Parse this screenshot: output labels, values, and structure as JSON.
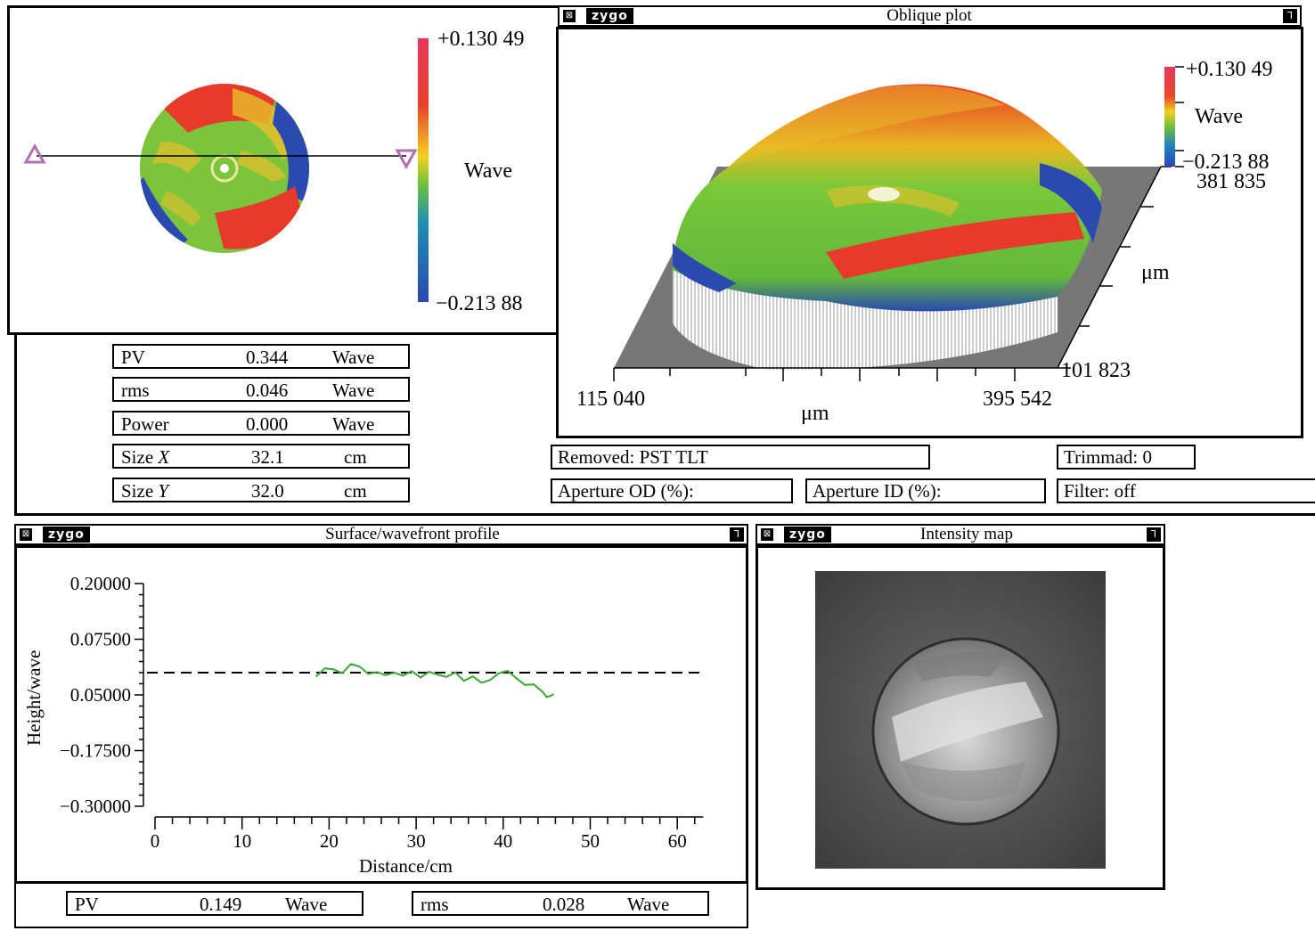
{
  "surface_map": {
    "scale_max": "+0.130 49",
    "scale_min": "−0.213 88",
    "scale_unit": "Wave"
  },
  "stats": [
    {
      "label": "PV",
      "value": "0.344",
      "unit": "Wave"
    },
    {
      "label": "rms",
      "value": "0.046",
      "unit": "Wave"
    },
    {
      "label": "Power",
      "value": "0.000",
      "unit": "Wave"
    },
    {
      "label": "Size ",
      "axis": "X",
      "value": "32.1",
      "unit": "cm"
    },
    {
      "label": "Size ",
      "axis": "Y",
      "value": "32.0",
      "unit": "cm"
    }
  ],
  "oblique": {
    "logo": "zygo",
    "title": "Oblique plot",
    "scale_max": "+0.130 49",
    "scale_unit": "Wave",
    "scale_min": "−0.213 88",
    "y_max": "381 835",
    "y_unit": "μm",
    "y_min": "101 823",
    "x_min": "115 040",
    "x_max": "395 542",
    "x_unit": "μm"
  },
  "fields": {
    "removed": "Removed: PST  TLT",
    "trimmed": "Trimmad: 0",
    "aperture_od": "Aperture OD (%):",
    "aperture_id": "Aperture ID (%):",
    "filter": "Filter: off"
  },
  "profile": {
    "logo": "zygo",
    "title": "Surface/wavefront profile",
    "pv_label": "PV",
    "pv_value": "0.149",
    "pv_unit": "Wave",
    "rms_label": "rms",
    "rms_value": "0.028",
    "rms_unit": "Wave"
  },
  "intensity": {
    "logo": "zygo",
    "title": "Intensity map"
  },
  "chart_data": {
    "type": "line",
    "xlabel": "Distance/cm",
    "ylabel": "Height/wave",
    "y_ticks": [
      "0.20000",
      "0.07500",
      "0.05000",
      "−0.17500",
      "−0.30000"
    ],
    "x_ticks": [
      0,
      10,
      20,
      30,
      40,
      50,
      60
    ],
    "xlim": [
      0,
      63
    ],
    "reference_line": {
      "style": "dashed",
      "value": "between 0.07500 and 0.05000 ticks"
    },
    "series": [
      {
        "color": "#3aa832",
        "x": [
          18.5,
          19.5,
          20.5,
          21.5,
          22.5,
          23.5,
          24.5,
          25.5,
          26.5,
          27.5,
          28.5,
          29.5,
          30.5,
          31.5,
          32.5,
          33.5,
          34.5,
          35.5,
          36.5,
          37.5,
          38.5,
          39.5,
          40.5,
          41.5,
          42.5,
          43.5,
          44.5,
          45,
          45.5,
          45.8
        ],
        "y_rel": [
          -0.13,
          0.14,
          0.11,
          -0.02,
          0.28,
          0.2,
          -0.04,
          0.02,
          -0.08,
          0.0,
          -0.1,
          0.05,
          -0.16,
          0.03,
          -0.07,
          -0.14,
          0.01,
          -0.27,
          -0.12,
          -0.33,
          -0.24,
          -0.02,
          0.06,
          -0.18,
          -0.4,
          -0.38,
          -0.62,
          -0.8,
          -0.75,
          -0.7
        ]
      }
    ]
  }
}
